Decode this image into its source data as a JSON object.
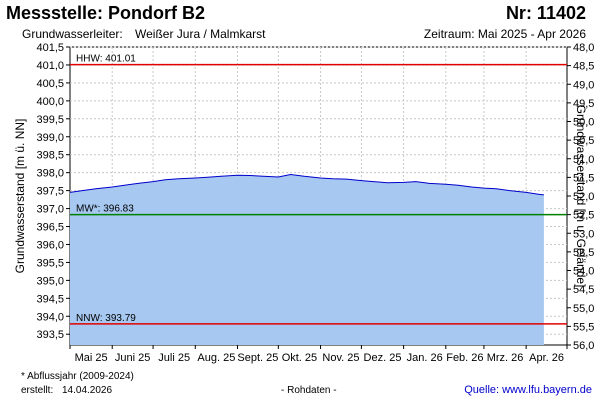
{
  "header": {
    "title": "Messstelle: Pondorf B2",
    "nr": "Nr: 11402",
    "aquifer_label": "Grundwasserleiter:",
    "aquifer_value": "Weißer Jura / Malmkarst",
    "period": "Zeitraum: Mai 2025 - Apr 2026"
  },
  "footer": {
    "footnote": "* Abflussjahr (2009-2024)",
    "created_label": "erstellt:",
    "created_value": "14.04.2026",
    "rawdata": "- Rohdaten -",
    "source": "Quelle: www.lfu.bayern.de"
  },
  "colors": {
    "fill": "#a7c8f0",
    "line": "#0000cc",
    "hhw": "#e00000",
    "nnw": "#e00000",
    "mw": "#008000",
    "grid": "#c8c8c8"
  },
  "chart_data": {
    "type": "area",
    "title": "Messstelle: Pondorf B2",
    "ylabel": "Grundwasserstand [m ü. NN]",
    "ylabel_right": "Grundwasserstand [m u. Gelände]",
    "ylim": [
      393.2,
      401.5
    ],
    "ylim_right": [
      48.0,
      56.0
    ],
    "y_ticks": [
      "401,5",
      "401,0",
      "400,5",
      "400,0",
      "399,5",
      "399,0",
      "398,5",
      "398,0",
      "397,5",
      "397,0",
      "396,5",
      "396,0",
      "395,5",
      "395,0",
      "394,5",
      "394,0",
      "393,5"
    ],
    "y_ticks_right": [
      "48,0",
      "48,5",
      "49,0",
      "49,5",
      "50,0",
      "50,5",
      "51,0",
      "51,5",
      "52,0",
      "52,5",
      "53,0",
      "53,5",
      "54,0",
      "54,5",
      "55,0",
      "55,5",
      "56,0"
    ],
    "x_ticks": [
      "Mai 25",
      "Juni 25",
      "Juli 25",
      "Aug. 25",
      "Sept. 25",
      "Okt. 25",
      "Nov. 25",
      "Dez. 25",
      "Jan. 26",
      "Feb. 26",
      "Mrz. 26",
      "Apr. 26"
    ],
    "grid": true,
    "reference_lines": [
      {
        "label": "HHW: 401.01",
        "value": 401.01
      },
      {
        "label": "MW*: 396.83",
        "value": 396.83
      },
      {
        "label": "NNW: 393.79",
        "value": 393.79
      }
    ],
    "series": [
      {
        "x": [
          "2025-05-01",
          "2025-05-10",
          "2025-05-20",
          "2025-06-01",
          "2025-06-10",
          "2025-06-20",
          "2025-07-01",
          "2025-07-10",
          "2025-07-20",
          "2025-08-01",
          "2025-08-10",
          "2025-08-20",
          "2025-09-01",
          "2025-09-10",
          "2025-09-20",
          "2025-10-01",
          "2025-10-10",
          "2025-10-20",
          "2025-11-01",
          "2025-11-10",
          "2025-11-20",
          "2025-12-01",
          "2025-12-10",
          "2025-12-20",
          "2026-01-01",
          "2026-01-10",
          "2026-01-20",
          "2026-02-01",
          "2026-02-10",
          "2026-02-20",
          "2026-03-01",
          "2026-03-10",
          "2026-03-20",
          "2026-04-01",
          "2026-04-10",
          "2026-04-14"
        ],
        "values": [
          397.45,
          397.5,
          397.55,
          397.6,
          397.65,
          397.7,
          397.75,
          397.8,
          397.83,
          397.85,
          397.87,
          397.9,
          397.93,
          397.92,
          397.9,
          397.88,
          397.95,
          397.9,
          397.85,
          397.83,
          397.82,
          397.78,
          397.75,
          397.72,
          397.73,
          397.75,
          397.7,
          397.68,
          397.65,
          397.6,
          397.57,
          397.55,
          397.5,
          397.45,
          397.4,
          397.38
        ]
      }
    ]
  }
}
